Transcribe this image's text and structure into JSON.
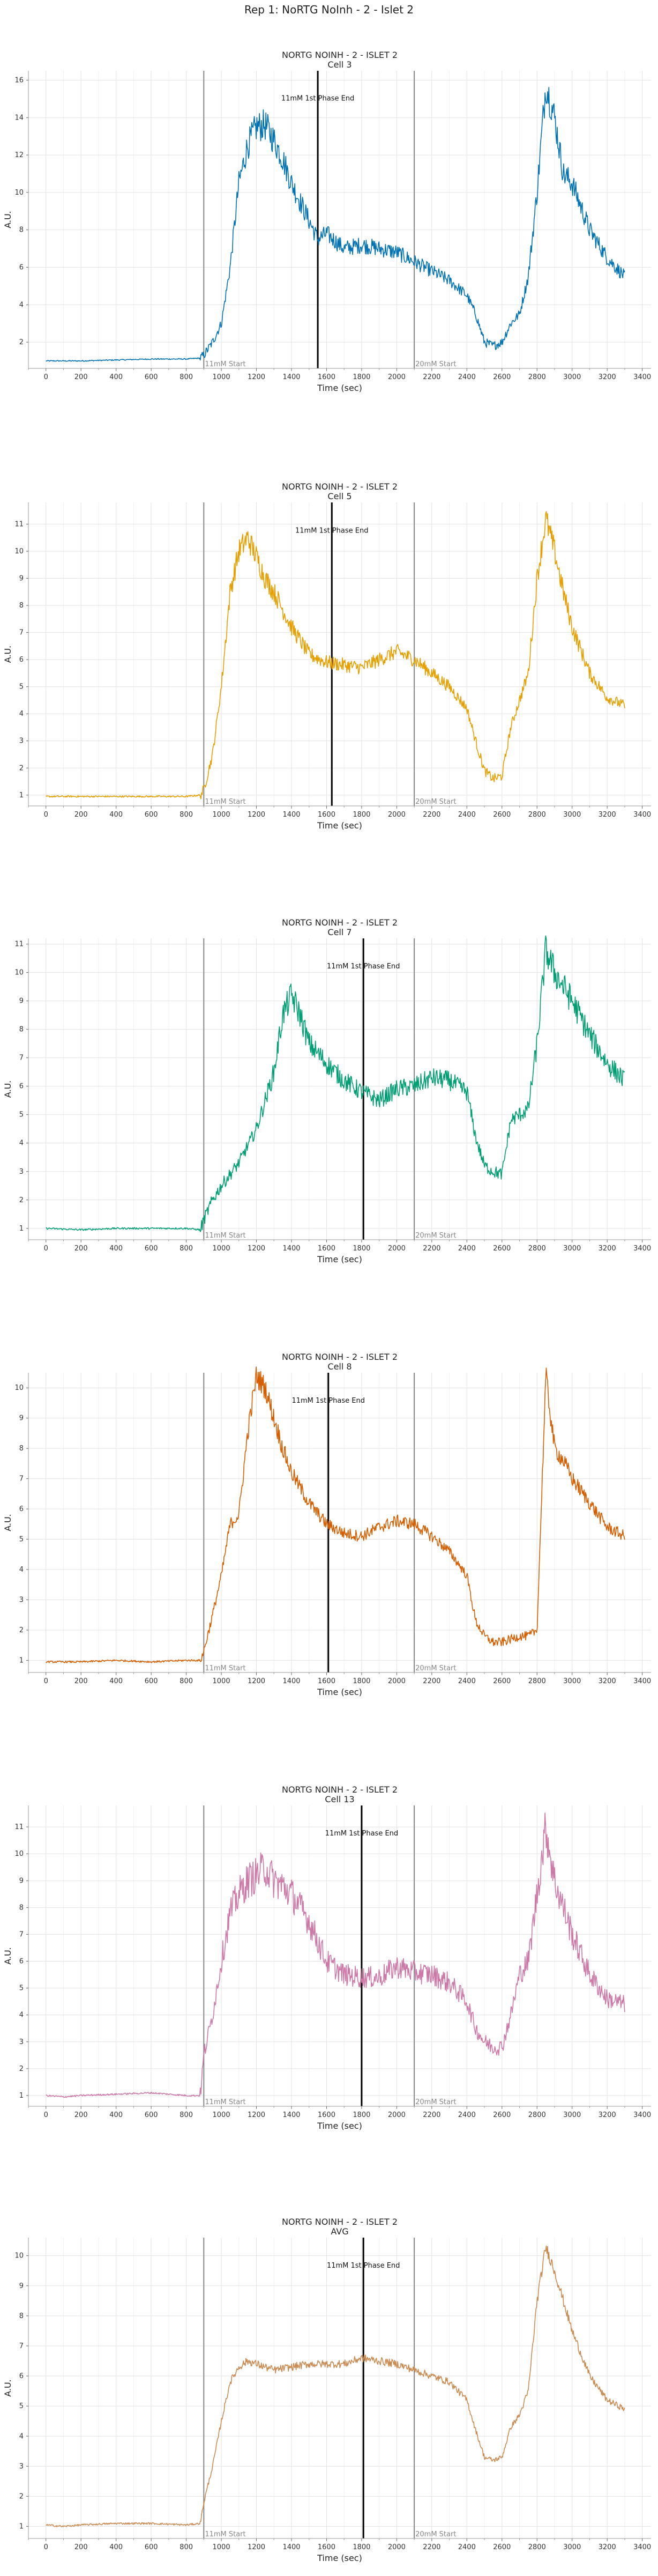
{
  "figure_title": "Rep 1: NoRTG NoInh - 2 - Islet 2",
  "chart_data": [
    {
      "type": "line",
      "title": "NORTG NOINH - 2 - ISLET 2",
      "subtitle": "Cell 3",
      "xlabel": "Time (sec)",
      "ylabel": "A.U.",
      "xlim": [
        -100,
        3450
      ],
      "ylim": [
        0.6,
        16.5
      ],
      "xticks": [
        0,
        200,
        400,
        600,
        800,
        1000,
        1200,
        1400,
        1600,
        1800,
        2000,
        2200,
        2400,
        2600,
        2800,
        3000,
        3200,
        3400
      ],
      "yticks": [
        2,
        4,
        6,
        8,
        10,
        12,
        14,
        16
      ],
      "grid": true,
      "color": "#0072b2",
      "noise": 0.25,
      "vlines": [
        {
          "x": 900,
          "style": "gray",
          "label": "11mM Start"
        },
        {
          "x": 1550,
          "style": "black",
          "label": "11mM 1st Phase End"
        },
        {
          "x": 2100,
          "style": "gray",
          "label": "20mM Start"
        }
      ],
      "series": [
        {
          "x": [
            0,
            200,
            400,
            600,
            800,
            880,
            900,
            950,
            1000,
            1050,
            1100,
            1150,
            1200,
            1250,
            1300,
            1350,
            1400,
            1500,
            1550,
            1600,
            1700,
            1800,
            1900,
            2000,
            2100,
            2200,
            2300,
            2400,
            2450,
            2500,
            2550,
            2600,
            2650,
            2700,
            2750,
            2800,
            2850,
            2900,
            2950,
            3000,
            3100,
            3200,
            3300
          ],
          "y": [
            1.0,
            1.0,
            1.05,
            1.1,
            1.1,
            1.15,
            1.3,
            2.0,
            3.0,
            6.0,
            10.5,
            12.5,
            13.5,
            13.6,
            12.8,
            11.8,
            10.5,
            8.5,
            7.5,
            7.8,
            7.0,
            7.2,
            7.0,
            6.8,
            6.3,
            5.8,
            5.3,
            4.5,
            3.5,
            2.0,
            1.8,
            2.0,
            3.0,
            3.5,
            5.5,
            10.0,
            15.8,
            14.0,
            11.0,
            10.5,
            8.0,
            6.5,
            5.5
          ]
        }
      ]
    },
    {
      "type": "line",
      "title": "NORTG NOINH - 2 - ISLET 2",
      "subtitle": "Cell 5",
      "xlabel": "Time (sec)",
      "ylabel": "A.U.",
      "xlim": [
        -100,
        3450
      ],
      "ylim": [
        0.6,
        11.8
      ],
      "xticks": [
        0,
        200,
        400,
        600,
        800,
        1000,
        1200,
        1400,
        1600,
        1800,
        2000,
        2200,
        2400,
        2600,
        2800,
        3000,
        3200,
        3400
      ],
      "yticks": [
        1,
        2,
        3,
        4,
        5,
        6,
        7,
        8,
        9,
        10,
        11
      ],
      "grid": true,
      "color": "#e69f00",
      "noise": 0.18,
      "vlines": [
        {
          "x": 900,
          "style": "gray",
          "label": "11mM Start"
        },
        {
          "x": 1630,
          "style": "black",
          "label": "11mM 1st Phase End"
        },
        {
          "x": 2100,
          "style": "gray",
          "label": "20mM Start"
        }
      ],
      "series": [
        {
          "x": [
            0,
            200,
            400,
            600,
            800,
            880,
            900,
            950,
            1000,
            1050,
            1100,
            1150,
            1200,
            1250,
            1300,
            1400,
            1500,
            1600,
            1700,
            1800,
            1900,
            2000,
            2100,
            2200,
            2300,
            2400,
            2450,
            2500,
            2550,
            2600,
            2650,
            2700,
            2750,
            2800,
            2850,
            2900,
            2950,
            3000,
            3100,
            3200,
            3300
          ],
          "y": [
            0.95,
            0.95,
            0.95,
            0.95,
            0.95,
            1.0,
            1.2,
            2.5,
            5.0,
            8.5,
            10.0,
            10.5,
            9.8,
            9.0,
            8.5,
            7.2,
            6.2,
            5.9,
            5.8,
            5.7,
            6.0,
            6.3,
            6.0,
            5.5,
            5.0,
            4.2,
            3.0,
            1.9,
            1.6,
            1.7,
            3.5,
            4.5,
            5.5,
            9.0,
            11.2,
            10.0,
            8.5,
            7.2,
            5.5,
            4.6,
            4.3
          ]
        }
      ]
    },
    {
      "type": "line",
      "title": "NORTG NOINH - 2 - ISLET 2",
      "subtitle": "Cell 7",
      "xlabel": "Time (sec)",
      "ylabel": "A.U.",
      "xlim": [
        -100,
        3450
      ],
      "ylim": [
        0.6,
        11.2
      ],
      "xticks": [
        0,
        200,
        400,
        600,
        800,
        1000,
        1200,
        1400,
        1600,
        1800,
        2000,
        2200,
        2400,
        2600,
        2800,
        3000,
        3200,
        3400
      ],
      "yticks": [
        1,
        2,
        3,
        4,
        5,
        6,
        7,
        8,
        9,
        10,
        11
      ],
      "grid": true,
      "color": "#009e73",
      "noise": 0.22,
      "vlines": [
        {
          "x": 900,
          "style": "gray",
          "label": "11mM Start"
        },
        {
          "x": 1810,
          "style": "black",
          "label": "11mM 1st Phase End"
        },
        {
          "x": 2100,
          "style": "gray",
          "label": "20mM Start"
        }
      ],
      "series": [
        {
          "x": [
            0,
            200,
            400,
            600,
            800,
            880,
            900,
            950,
            1000,
            1100,
            1200,
            1300,
            1350,
            1400,
            1450,
            1500,
            1600,
            1700,
            1800,
            1900,
            2000,
            2100,
            2200,
            2300,
            2400,
            2450,
            2500,
            2550,
            2600,
            2650,
            2700,
            2750,
            2800,
            2850,
            2900,
            3000,
            3100,
            3200,
            3300
          ],
          "y": [
            1.0,
            0.95,
            1.0,
            1.0,
            1.0,
            0.95,
            1.3,
            2.0,
            2.5,
            3.3,
            4.5,
            6.5,
            8.5,
            9.2,
            8.5,
            7.5,
            6.8,
            6.2,
            5.8,
            5.5,
            5.9,
            6.0,
            6.3,
            6.2,
            5.8,
            4.2,
            3.2,
            3.0,
            2.9,
            4.8,
            5.0,
            5.2,
            7.5,
            10.8,
            10.0,
            9.0,
            7.8,
            6.8,
            6.2
          ]
        }
      ]
    },
    {
      "type": "line",
      "title": "NORTG NOINH - 2 - ISLET 2",
      "subtitle": "Cell 8",
      "xlabel": "Time (sec)",
      "ylabel": "A.U.",
      "xlim": [
        -100,
        3450
      ],
      "ylim": [
        0.6,
        10.5
      ],
      "xticks": [
        0,
        200,
        400,
        600,
        800,
        1000,
        1200,
        1400,
        1600,
        1800,
        2000,
        2200,
        2400,
        2600,
        2800,
        3000,
        3200,
        3400
      ],
      "yticks": [
        1,
        2,
        3,
        4,
        5,
        6,
        7,
        8,
        9,
        10
      ],
      "grid": true,
      "color": "#d55e00",
      "noise": 0.15,
      "vlines": [
        {
          "x": 900,
          "style": "gray",
          "label": "11mM Start"
        },
        {
          "x": 1610,
          "style": "black",
          "label": "11mM 1st Phase End"
        },
        {
          "x": 2100,
          "style": "gray",
          "label": "20mM Start"
        }
      ],
      "series": [
        {
          "x": [
            0,
            200,
            400,
            600,
            800,
            880,
            900,
            950,
            1000,
            1050,
            1100,
            1150,
            1200,
            1250,
            1300,
            1350,
            1400,
            1500,
            1600,
            1700,
            1800,
            1900,
            2000,
            2100,
            2200,
            2300,
            2400,
            2450,
            2500,
            2550,
            2600,
            2650,
            2700,
            2750,
            2800,
            2850,
            2900,
            2950,
            3000,
            3100,
            3200,
            3300
          ],
          "y": [
            0.95,
            0.95,
            1.0,
            0.95,
            1.0,
            1.0,
            1.3,
            2.5,
            3.8,
            5.5,
            5.8,
            8.5,
            10.4,
            10.0,
            9.0,
            8.0,
            7.2,
            6.2,
            5.5,
            5.2,
            5.1,
            5.4,
            5.6,
            5.5,
            5.1,
            4.6,
            3.8,
            2.3,
            1.8,
            1.6,
            1.6,
            1.7,
            1.8,
            1.8,
            2.0,
            10.4,
            8.0,
            7.6,
            7.0,
            6.2,
            5.4,
            5.1
          ]
        }
      ]
    },
    {
      "type": "line",
      "title": "NORTG NOINH - 2 - ISLET 2",
      "subtitle": "Cell 13",
      "xlabel": "Time (sec)",
      "ylabel": "A.U.",
      "xlim": [
        -100,
        3450
      ],
      "ylim": [
        0.6,
        11.8
      ],
      "xticks": [
        0,
        200,
        400,
        600,
        800,
        1000,
        1200,
        1400,
        1600,
        1800,
        2000,
        2200,
        2400,
        2600,
        2800,
        3000,
        3200,
        3400
      ],
      "yticks": [
        1,
        2,
        3,
        4,
        5,
        6,
        7,
        8,
        9,
        10,
        11
      ],
      "grid": true,
      "color": "#cc79a7",
      "noise": 0.3,
      "vlines": [
        {
          "x": 900,
          "style": "gray",
          "label": "11mM Start"
        },
        {
          "x": 1800,
          "style": "black",
          "label": "11mM 1st Phase End"
        },
        {
          "x": 2100,
          "style": "gray",
          "label": "20mM Start"
        }
      ],
      "series": [
        {
          "x": [
            0,
            100,
            200,
            400,
            600,
            800,
            880,
            900,
            950,
            1000,
            1050,
            1100,
            1150,
            1200,
            1250,
            1300,
            1350,
            1400,
            1500,
            1600,
            1700,
            1800,
            1900,
            2000,
            2100,
            2200,
            2300,
            2400,
            2450,
            2500,
            2550,
            2600,
            2650,
            2700,
            2750,
            2800,
            2850,
            2900,
            3000,
            3100,
            3200,
            3300
          ],
          "y": [
            1.0,
            0.95,
            1.0,
            1.05,
            1.1,
            1.0,
            1.0,
            2.5,
            4.0,
            6.0,
            7.8,
            8.5,
            9.0,
            9.2,
            9.5,
            9.0,
            8.8,
            8.5,
            7.5,
            6.0,
            5.5,
            5.4,
            5.4,
            5.8,
            5.6,
            5.5,
            5.2,
            4.5,
            3.5,
            3.0,
            2.8,
            2.8,
            4.0,
            5.5,
            6.0,
            8.5,
            11.0,
            9.0,
            7.0,
            5.5,
            4.6,
            4.4
          ]
        }
      ]
    },
    {
      "type": "line",
      "title": "NORTG NOINH - 2 - ISLET 2",
      "subtitle": "AVG",
      "xlabel": "Time (sec)",
      "ylabel": "A.U.",
      "xlim": [
        -100,
        3450
      ],
      "ylim": [
        0.6,
        10.6
      ],
      "xticks": [
        0,
        200,
        400,
        600,
        800,
        1000,
        1200,
        1400,
        1600,
        1800,
        2000,
        2200,
        2400,
        2600,
        2800,
        3000,
        3200,
        3400
      ],
      "yticks": [
        1,
        2,
        3,
        4,
        5,
        6,
        7,
        8,
        9,
        10
      ],
      "grid": true,
      "color": "#c98b52",
      "noise": 0.08,
      "vlines": [
        {
          "x": 900,
          "style": "gray",
          "label": "11mM Start"
        },
        {
          "x": 1810,
          "style": "black",
          "label": "11mM 1st Phase End"
        },
        {
          "x": 2100,
          "style": "gray",
          "label": "20mM Start"
        }
      ],
      "series": [
        {
          "x": [
            0,
            100,
            200,
            400,
            600,
            800,
            880,
            900,
            950,
            1000,
            1050,
            1100,
            1150,
            1200,
            1300,
            1400,
            1500,
            1600,
            1700,
            1800,
            1900,
            2000,
            2100,
            2200,
            2300,
            2400,
            2450,
            2500,
            2550,
            2600,
            2650,
            2700,
            2750,
            2800,
            2850,
            2900,
            3000,
            3100,
            3200,
            3300
          ],
          "y": [
            1.05,
            1.0,
            1.05,
            1.1,
            1.1,
            1.05,
            1.1,
            1.8,
            3.0,
            4.5,
            5.8,
            6.3,
            6.5,
            6.4,
            6.2,
            6.3,
            6.4,
            6.4,
            6.4,
            6.6,
            6.5,
            6.4,
            6.2,
            6.0,
            5.8,
            5.2,
            4.2,
            3.3,
            3.2,
            3.3,
            4.3,
            4.7,
            5.5,
            8.5,
            10.3,
            9.5,
            7.5,
            6.0,
            5.2,
            4.9
          ]
        }
      ]
    }
  ]
}
